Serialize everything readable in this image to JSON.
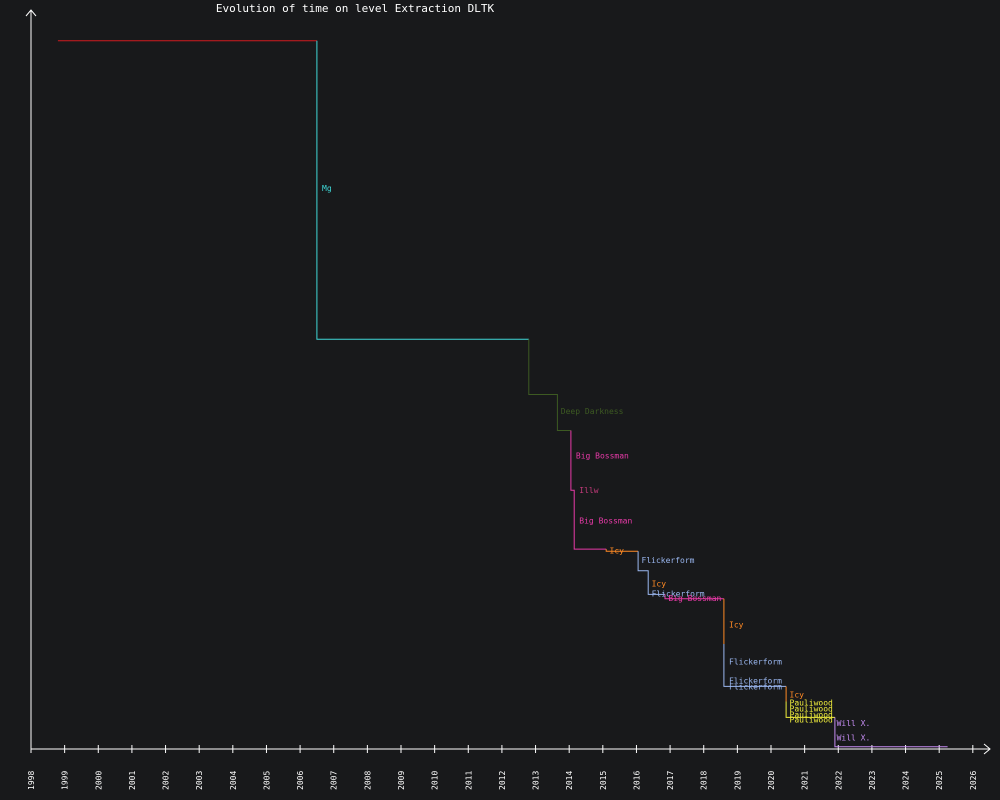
{
  "chart_data": {
    "type": "line",
    "title": "Evolution of time on level Extraction DLTK",
    "xlabel": "",
    "ylabel": "",
    "x_ticks": [
      "1998",
      "1999",
      "2000",
      "2001",
      "2002",
      "2003",
      "2004",
      "2005",
      "2006",
      "2007",
      "2008",
      "2009",
      "2010",
      "2011",
      "2012",
      "2013",
      "2014",
      "2015",
      "2016",
      "2017",
      "2018",
      "2019",
      "2020",
      "2021",
      "2022",
      "2023",
      "2024",
      "2025",
      "2026"
    ],
    "xlim": [
      1998.0,
      2026.6
    ],
    "ylim": [
      0,
      100
    ],
    "grid": false,
    "legend": "none",
    "colors": {
      "background": "#18191b",
      "axis": "#ffffff",
      "title": "#ffffff"
    },
    "series": [
      {
        "color": "#d01a20",
        "points": [
          [
            1998.8,
            98.5
          ],
          [
            2006.5,
            98.5
          ]
        ]
      },
      {
        "color": "#3fd8d8",
        "points": [
          [
            2006.5,
            98.5
          ],
          [
            2006.5,
            57.0
          ],
          [
            2012.8,
            57.0
          ]
        ]
      },
      {
        "color": "#3d5a22",
        "points": [
          [
            2012.8,
            57.0
          ],
          [
            2012.8,
            49.3
          ],
          [
            2013.65,
            49.3
          ],
          [
            2013.65,
            44.3
          ],
          [
            2014.05,
            44.3
          ]
        ]
      },
      {
        "color": "#e83aa8",
        "points": [
          [
            2014.05,
            44.3
          ],
          [
            2014.05,
            36.0
          ],
          [
            2014.15,
            36.0
          ],
          [
            2014.15,
            27.8
          ],
          [
            2015.1,
            27.8
          ]
        ]
      },
      {
        "color": "#ff8a24",
        "points": [
          [
            2015.1,
            27.8
          ],
          [
            2015.1,
            27.5
          ],
          [
            2016.05,
            27.5
          ]
        ]
      },
      {
        "color": "#9ab7f0",
        "points": [
          [
            2016.05,
            27.5
          ],
          [
            2016.05,
            24.8
          ],
          [
            2016.35,
            24.8
          ],
          [
            2016.35,
            21.5
          ],
          [
            2016.85,
            21.5
          ]
        ]
      },
      {
        "color": "#e83aa8",
        "points": [
          [
            2016.85,
            21.5
          ],
          [
            2016.85,
            20.9
          ],
          [
            2018.6,
            20.9
          ]
        ]
      },
      {
        "color": "#ff8a24",
        "points": [
          [
            2018.6,
            20.9
          ],
          [
            2018.6,
            14.6
          ]
        ]
      },
      {
        "color": "#9ab7f0",
        "points": [
          [
            2018.6,
            14.6
          ],
          [
            2018.6,
            8.7
          ],
          [
            2020.45,
            8.7
          ]
        ]
      },
      {
        "color": "#ff8a24",
        "points": [
          [
            2020.45,
            8.7
          ],
          [
            2020.45,
            6.6
          ]
        ]
      },
      {
        "color": "#f2ef3c",
        "points": [
          [
            2020.45,
            6.6
          ],
          [
            2020.45,
            4.4
          ],
          [
            2021.9,
            4.4
          ]
        ]
      },
      {
        "color": "#c58cf2",
        "points": [
          [
            2021.9,
            4.4
          ],
          [
            2021.9,
            0.3
          ],
          [
            2025.25,
            0.3
          ]
        ]
      }
    ],
    "annotations": [
      {
        "text": "Mg",
        "x": 2006.65,
        "y": 78.0,
        "color": "#3fd8d8"
      },
      {
        "text": "Deep Darkness",
        "x": 212.9,
        "y": 53.2,
        "color": "#3d5a22"
      },
      {
        "text": "Deep Darkness",
        "x": 2013.75,
        "y": 47.0,
        "color": "#3d5a22"
      },
      {
        "text": "Big Bossman",
        "x": 2014.2,
        "y": 40.8,
        "color": "#e83aa8"
      },
      {
        "text": "Illw",
        "x": 2014.3,
        "y": 36.0,
        "color": "#c23a7a"
      },
      {
        "text": "Big Bossman",
        "x": 2014.3,
        "y": 31.8,
        "color": "#e83aa8"
      },
      {
        "text": "Icy",
        "x": 2015.2,
        "y": 27.6,
        "color": "#ff8a24"
      },
      {
        "text": "Flickerform",
        "x": 2016.15,
        "y": 26.3,
        "color": "#9ab7f0"
      },
      {
        "text": "Icy",
        "x": 2016.45,
        "y": 23.0,
        "color": "#ff8a24"
      },
      {
        "text": "Flickerform",
        "x": 2016.45,
        "y": 21.6,
        "color": "#9ab7f0"
      },
      {
        "text": "Big Bossman",
        "x": 2016.95,
        "y": 21.0,
        "color": "#e83aa8"
      },
      {
        "text": "Icy",
        "x": 2018.75,
        "y": 17.3,
        "color": "#ff8a24"
      },
      {
        "text": "Flickerform",
        "x": 2018.75,
        "y": 12.2,
        "color": "#9ab7f0"
      },
      {
        "text": "Flickerform",
        "x": 2018.75,
        "y": 9.5,
        "color": "#9ab7f0"
      },
      {
        "text": "Flickerform",
        "x": 2018.75,
        "y": 8.7,
        "color": "#9ab7f0"
      },
      {
        "text": "Icy",
        "x": 2020.55,
        "y": 7.6,
        "color": "#ff8a24"
      },
      {
        "text": "Pauliwood",
        "x": 2020.55,
        "y": 6.5,
        "color": "#f2ef3c"
      },
      {
        "text": "Pauliwood",
        "x": 2020.55,
        "y": 5.6,
        "color": "#f2ef3c"
      },
      {
        "text": "Pauliwood",
        "x": 2020.55,
        "y": 4.8,
        "color": "#f2ef3c"
      },
      {
        "text": "Pauliwood",
        "x": 2020.55,
        "y": 4.1,
        "color": "#f2ef3c"
      },
      {
        "text": "Will X.",
        "x": 2021.95,
        "y": 3.6,
        "color": "#c58cf2"
      },
      {
        "text": "Will X.",
        "x": 2021.95,
        "y": 1.6,
        "color": "#c58cf2"
      }
    ]
  }
}
